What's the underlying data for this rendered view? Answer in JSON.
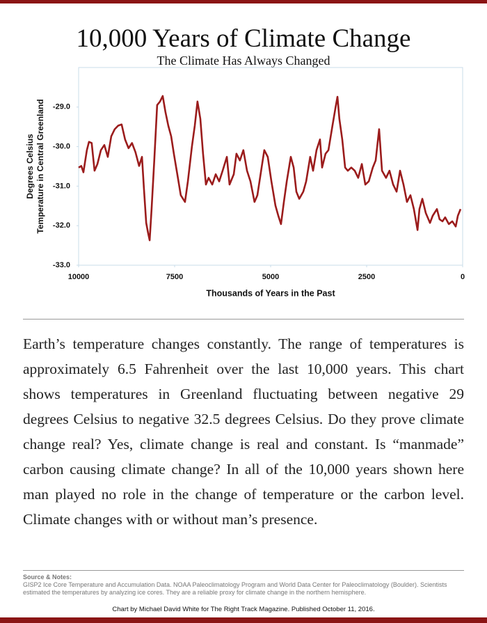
{
  "chart_data": {
    "type": "line",
    "title": "10,000 Years of Climate Change",
    "subtitle": "The Climate Has Always Changed",
    "xlabel": "Thousands of Years in the Past",
    "ylabel": [
      "Degrees Celsius",
      "Temperature in Central Greenland"
    ],
    "xlim": [
      10000,
      0
    ],
    "xticks": [
      10000,
      7500,
      5000,
      2500,
      0
    ],
    "ylim": [
      -33,
      -28
    ],
    "yticks": [
      {
        "value": -33,
        "label": "-33.0"
      },
      {
        "value": -32,
        "label": "-32.0"
      },
      {
        "value": -31,
        "label": "-31.0"
      },
      {
        "value": -30,
        "label": "-30.0"
      },
      {
        "value": -29,
        "label": "-29.0"
      }
    ],
    "x": [
      10000,
      9930,
      9875,
      9785,
      9730,
      9660,
      9585,
      9510,
      9420,
      9330,
      9240,
      9150,
      9060,
      8970,
      8880,
      8790,
      8700,
      8610,
      8520,
      8425,
      8350,
      8300,
      8240,
      8190,
      8150,
      8100,
      8030,
      7955,
      7880,
      7810,
      7740,
      7665,
      7590,
      7520,
      7430,
      7340,
      7230,
      7155,
      7050,
      6975,
      6905,
      6830,
      6760,
      6685,
      6615,
      6520,
      6430,
      6340,
      6250,
      6140,
      6070,
      5960,
      5890,
      5800,
      5710,
      5615,
      5525,
      5420,
      5345,
      5235,
      5165,
      5075,
      4980,
      4875,
      4800,
      4730,
      4655,
      4580,
      4475,
      4400,
      4330,
      4255,
      4150,
      4075,
      3970,
      3895,
      3805,
      3715,
      3660,
      3570,
      3495,
      3390,
      3315,
      3260,
      3210,
      3135,
      3060,
      2990,
      2900,
      2810,
      2720,
      2625,
      2535,
      2445,
      2340,
      2265,
      2175,
      2100,
      1995,
      1905,
      1810,
      1720,
      1630,
      1540,
      1450,
      1360,
      1270,
      1175,
      1125,
      1050,
      960,
      850,
      780,
      670,
      600,
      525,
      455,
      360,
      270,
      180,
      125,
      55
    ],
    "series": [
      {
        "name": "Temperature",
        "color": "#9b1c1c",
        "values": [
          -30.53,
          -30.49,
          -30.65,
          -30.09,
          -29.88,
          -29.91,
          -30.61,
          -30.44,
          -30.09,
          -29.96,
          -30.26,
          -29.74,
          -29.56,
          -29.47,
          -29.44,
          -29.82,
          -30.04,
          -29.91,
          -30.14,
          -30.49,
          -30.26,
          -31.05,
          -31.93,
          -32.19,
          -32.37,
          -31.58,
          -30.35,
          -28.95,
          -28.86,
          -28.72,
          -29.12,
          -29.47,
          -29.74,
          -30.18,
          -30.7,
          -31.23,
          -31.4,
          -30.88,
          -30,
          -29.47,
          -28.86,
          -29.3,
          -30.18,
          -30.96,
          -30.79,
          -30.96,
          -30.7,
          -30.88,
          -30.61,
          -30.26,
          -30.96,
          -30.7,
          -30.18,
          -30.35,
          -30.09,
          -30.61,
          -30.88,
          -31.4,
          -31.23,
          -30.53,
          -30.09,
          -30.26,
          -30.88,
          -31.49,
          -31.75,
          -31.96,
          -31.4,
          -30.88,
          -30.26,
          -30.53,
          -31.14,
          -31.32,
          -31.14,
          -30.88,
          -30.26,
          -30.61,
          -30.09,
          -29.82,
          -30.53,
          -30.18,
          -30.09,
          -29.47,
          -29.04,
          -28.74,
          -29.3,
          -29.82,
          -30.53,
          -30.61,
          -30.53,
          -30.61,
          -30.79,
          -30.44,
          -30.96,
          -30.88,
          -30.53,
          -30.35,
          -29.56,
          -30.61,
          -30.79,
          -30.61,
          -30.96,
          -31.14,
          -30.61,
          -30.96,
          -31.4,
          -31.23,
          -31.58,
          -32.11,
          -31.58,
          -31.32,
          -31.68,
          -31.93,
          -31.75,
          -31.58,
          -31.84,
          -31.89,
          -31.79,
          -31.96,
          -31.89,
          -32.02,
          -31.75,
          -31.58
        ]
      }
    ]
  },
  "paragraph": "Earth’s temperature changes constantly. The range of temperatures is approximately 6.5 Fahrenheit over the last 10,000 years. This chart shows temperatures in Greenland fluctuating between negative 29 degrees Celsius to negative 32.5 degrees Celsius. Do they prove climate change real? Yes, climate change is real and constant. Is “manmade” carbon causing climate change? In all of the 10,000 years shown here man played no role in the change of temperature or the carbon level. Climate changes with or without man’s presence.",
  "source_heading": "Source & Notes:",
  "source_text": "GISP2 Ice Core Temperature and Accumulation Data. NOAA Paleoclimatology Program and World Data Center for Paleoclimatology (Boulder). Scientists estimated the temperatures by analyzing ice cores. They are a reliable proxy for climate change in the northern hemisphere.",
  "footer": "Chart by Michael David White for The Right Track Magazine. Published October 11, 2016."
}
